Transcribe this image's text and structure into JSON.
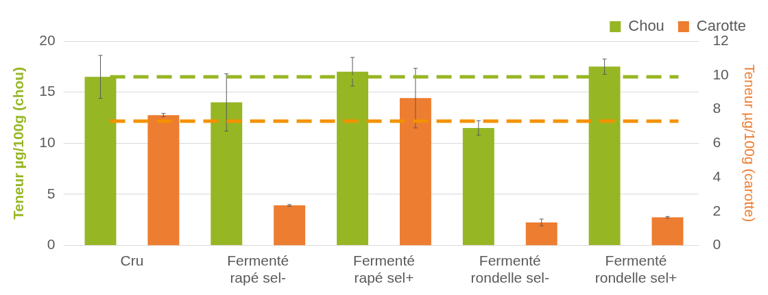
{
  "chart_data": {
    "type": "bar",
    "categories": [
      "Cru",
      "Fermenté rapé sel-",
      "Fermenté rapé sel+",
      "Fermenté rondelle sel-",
      "Fermenté rondelle sel+"
    ],
    "series": [
      {
        "name": "Chou",
        "color": "#97b624",
        "values": [
          16.5,
          14.0,
          17.0,
          11.5,
          17.5
        ],
        "errors": [
          2.1,
          2.8,
          1.4,
          0.7,
          0.75
        ]
      },
      {
        "name": "Carotte",
        "color": "#ed7d31",
        "axis": "y2",
        "values": [
          7.65,
          2.35,
          8.65,
          1.35,
          1.65
        ],
        "errors": [
          0.1,
          0.05,
          1.75,
          0.2,
          0.05
        ]
      }
    ],
    "ylabel": "Teneur µg/100g (chou)",
    "y2label": "Teneur µg/100g (carotte)",
    "ylim": [
      0,
      20
    ],
    "yticks": [
      0,
      5,
      10,
      15,
      20
    ],
    "y2lim": [
      0,
      12
    ],
    "y2ticks": [
      0,
      2,
      4,
      6,
      8,
      10,
      12
    ],
    "ref_lines": [
      {
        "axis": "y",
        "value": 16.5,
        "color": "#97b624",
        "line_style": "dashed"
      },
      {
        "axis": "y2",
        "value": 7.3,
        "color": "#f39200",
        "line_style": "dashed"
      }
    ],
    "grid": "y",
    "legend": "top right"
  }
}
